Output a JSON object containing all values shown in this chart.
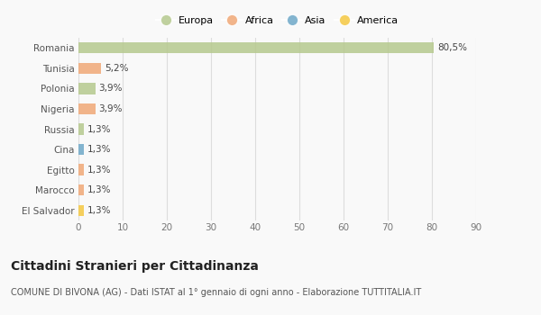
{
  "categories": [
    "Romania",
    "Tunisia",
    "Polonia",
    "Nigeria",
    "Russia",
    "Cina",
    "Egitto",
    "Marocco",
    "El Salvador"
  ],
  "values": [
    80.5,
    5.2,
    3.9,
    3.9,
    1.3,
    1.3,
    1.3,
    1.3,
    1.3
  ],
  "labels": [
    "80,5%",
    "5,2%",
    "3,9%",
    "3,9%",
    "1,3%",
    "1,3%",
    "1,3%",
    "1,3%",
    "1,3%"
  ],
  "colors": [
    "#b5c98e",
    "#f0a877",
    "#b5c98e",
    "#f0a877",
    "#b5c98e",
    "#6fa8c8",
    "#f0a877",
    "#f0a877",
    "#f5c842"
  ],
  "legend_entries": [
    "Europa",
    "Africa",
    "Asia",
    "America"
  ],
  "legend_colors": [
    "#b5c98e",
    "#f0a877",
    "#6fa8c8",
    "#f5c842"
  ],
  "xlim": [
    0,
    90
  ],
  "xticks": [
    0,
    10,
    20,
    30,
    40,
    50,
    60,
    70,
    80,
    90
  ],
  "title": "Cittadini Stranieri per Cittadinanza",
  "subtitle": "COMUNE DI BIVONA (AG) - Dati ISTAT al 1° gennaio di ogni anno - Elaborazione TUTTITALIA.IT",
  "bg_color": "#f9f9f9",
  "grid_color": "#dddddd",
  "bar_height": 0.55,
  "title_fontsize": 10,
  "subtitle_fontsize": 7,
  "tick_fontsize": 7.5,
  "label_fontsize": 7.5,
  "legend_fontsize": 8
}
